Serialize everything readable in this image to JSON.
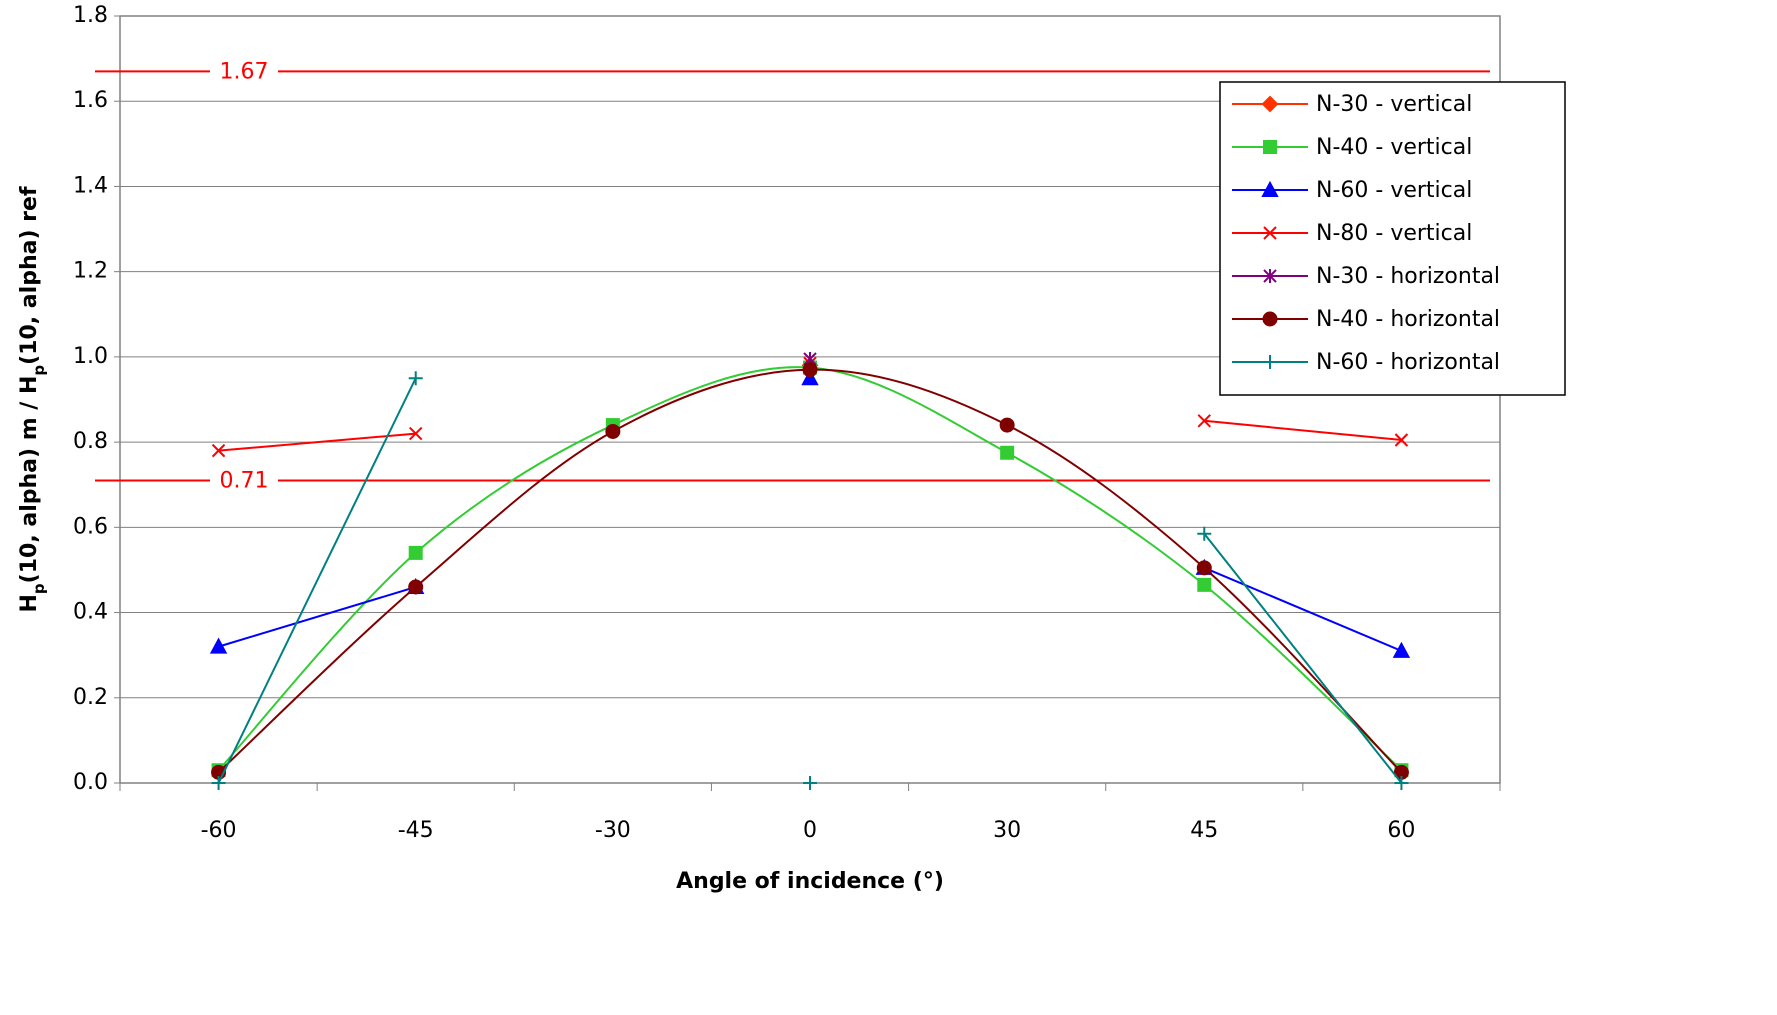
{
  "chart_data": {
    "type": "line",
    "x_label": "Angle of incidence (°)",
    "y_label": [
      "H",
      "p",
      "(10, alpha) m / H",
      "p",
      "(10, alpha) ref"
    ],
    "categories": [
      "-60",
      "-45",
      "-30",
      "0",
      "30",
      "45",
      "60"
    ],
    "ylim": [
      0,
      1.8
    ],
    "yticks": [
      {
        "value": 0,
        "label": "0.0"
      },
      0.2,
      0.4,
      0.6,
      0.8,
      {
        "value": 1,
        "label": "1.0"
      },
      1.2,
      1.4,
      1.6,
      1.8
    ],
    "grid": true,
    "legend": "right",
    "reference_lines": [
      1.67,
      0.71
    ],
    "reference_color": "#ff0000",
    "series": [
      {
        "name": "N-30 - vertical",
        "color": "#ff3300",
        "marker": "diamond",
        "values": [
          null,
          null,
          null,
          0.98,
          null,
          null,
          null
        ]
      },
      {
        "name": "N-40 - vertical",
        "color": "#33cc33",
        "marker": "square",
        "smooth": true,
        "values": [
          0.03,
          0.54,
          0.84,
          0.975,
          0.775,
          0.465,
          0.03
        ]
      },
      {
        "name": "N-60 - vertical",
        "color": "#0000ff",
        "marker": "triangle",
        "values": [
          0.32,
          0.46,
          null,
          0.95,
          null,
          0.505,
          0.31
        ]
      },
      {
        "name": "N-80 - vertical",
        "color": "#ff0000",
        "marker": "x",
        "values": [
          0.78,
          0.82,
          null,
          0.985,
          null,
          0.85,
          0.805
        ]
      },
      {
        "name": "N-30 - horizontal",
        "color": "#800080",
        "marker": "star",
        "values": [
          null,
          null,
          null,
          0.995,
          null,
          null,
          null
        ]
      },
      {
        "name": "N-40 - horizontal",
        "color": "#800000",
        "marker": "circle",
        "smooth": true,
        "values": [
          0.025,
          0.46,
          0.825,
          0.97,
          0.84,
          0.505,
          0.025
        ]
      },
      {
        "name": "N-60 - horizontal",
        "color": "#008080",
        "marker": "plus",
        "values": [
          0,
          0.95,
          null,
          0,
          null,
          0.585,
          0
        ]
      }
    ]
  }
}
